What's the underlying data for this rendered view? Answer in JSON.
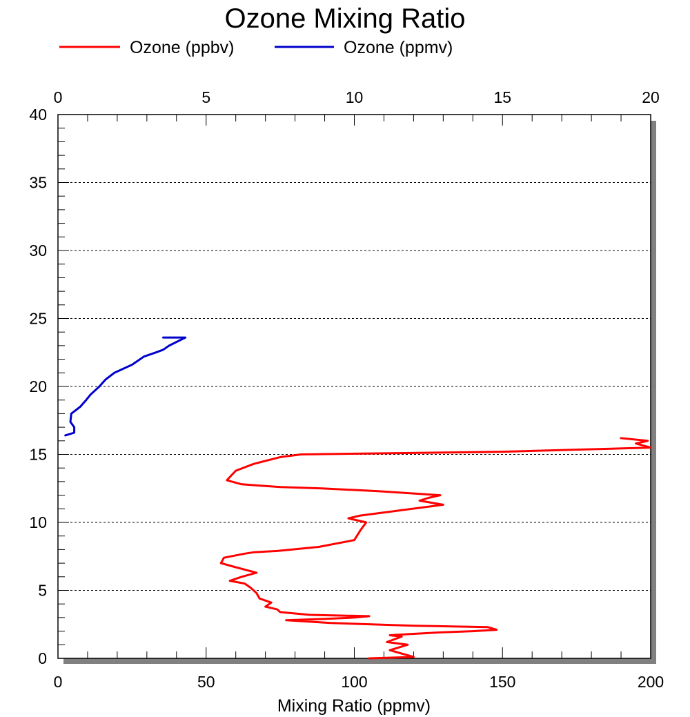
{
  "chart_data": {
    "type": "line",
    "title": "Ozone Mixing Ratio",
    "xlabel": "Mixing Ratio (ppmv)",
    "ylabel": "",
    "bottom_x_axis": {
      "lim": [
        0,
        200
      ],
      "ticks": [
        "0",
        "50",
        "100",
        "150",
        "200"
      ],
      "tick_values": [
        0,
        50,
        100,
        150,
        200
      ]
    },
    "top_x_axis": {
      "lim": [
        0,
        20
      ],
      "ticks": [
        "0",
        "5",
        "10",
        "15",
        "20"
      ],
      "tick_values": [
        0,
        5,
        10,
        15,
        20
      ]
    },
    "y_axis": {
      "lim": [
        0,
        40
      ],
      "ticks": [
        "0",
        "5",
        "10",
        "15",
        "20",
        "25",
        "30",
        "35",
        "40"
      ],
      "tick_values": [
        0,
        5,
        10,
        15,
        20,
        25,
        30,
        35,
        40
      ]
    },
    "grid": "horizontal dashed",
    "legend": {
      "placement": "top"
    },
    "series": [
      {
        "name": "Ozone (ppbv)",
        "color": "#ff0000",
        "axis": "bottom",
        "x": [
          105,
          120,
          112,
          118,
          111,
          116,
          112,
          120,
          128,
          140,
          148,
          145,
          120,
          92,
          77,
          90,
          100,
          105,
          85,
          75,
          74,
          70,
          72,
          68,
          67,
          65,
          63,
          58,
          62,
          67,
          60,
          55,
          56,
          63,
          66,
          74,
          88,
          100,
          102,
          104,
          98,
          102,
          130,
          122,
          125,
          129,
          108,
          89,
          75,
          62,
          57,
          60,
          66,
          75,
          82,
          150,
          200,
          195,
          199,
          190
        ],
        "y": [
          0.0,
          0.1,
          0.6,
          1.0,
          1.2,
          1.6,
          1.7,
          1.8,
          1.9,
          2.0,
          2.1,
          2.3,
          2.4,
          2.6,
          2.8,
          2.9,
          3.0,
          3.1,
          3.2,
          3.4,
          3.6,
          3.8,
          4.1,
          4.4,
          4.8,
          5.2,
          5.5,
          5.7,
          6.0,
          6.3,
          6.7,
          7.0,
          7.4,
          7.7,
          7.8,
          7.9,
          8.2,
          8.7,
          9.4,
          10.0,
          10.3,
          10.5,
          11.3,
          11.6,
          11.8,
          12.0,
          12.3,
          12.5,
          12.6,
          12.8,
          13.1,
          13.8,
          14.3,
          14.8,
          15.0,
          15.2,
          15.5,
          15.8,
          16.0,
          16.2
        ]
      },
      {
        "name": "Ozone (ppmv)",
        "color": "#0000cc",
        "axis": "top",
        "x": [
          0.25,
          0.55,
          0.55,
          0.42,
          0.45,
          0.75,
          0.95,
          1.1,
          1.4,
          1.6,
          1.9,
          2.1,
          2.5,
          2.7,
          2.9,
          3.3,
          3.55,
          3.75,
          4.3,
          3.55
        ],
        "y": [
          16.4,
          16.6,
          17.0,
          17.4,
          18.0,
          18.5,
          19.0,
          19.4,
          20.0,
          20.5,
          21.0,
          21.2,
          21.6,
          21.9,
          22.2,
          22.5,
          22.7,
          23.0,
          23.6,
          23.6
        ]
      }
    ]
  }
}
